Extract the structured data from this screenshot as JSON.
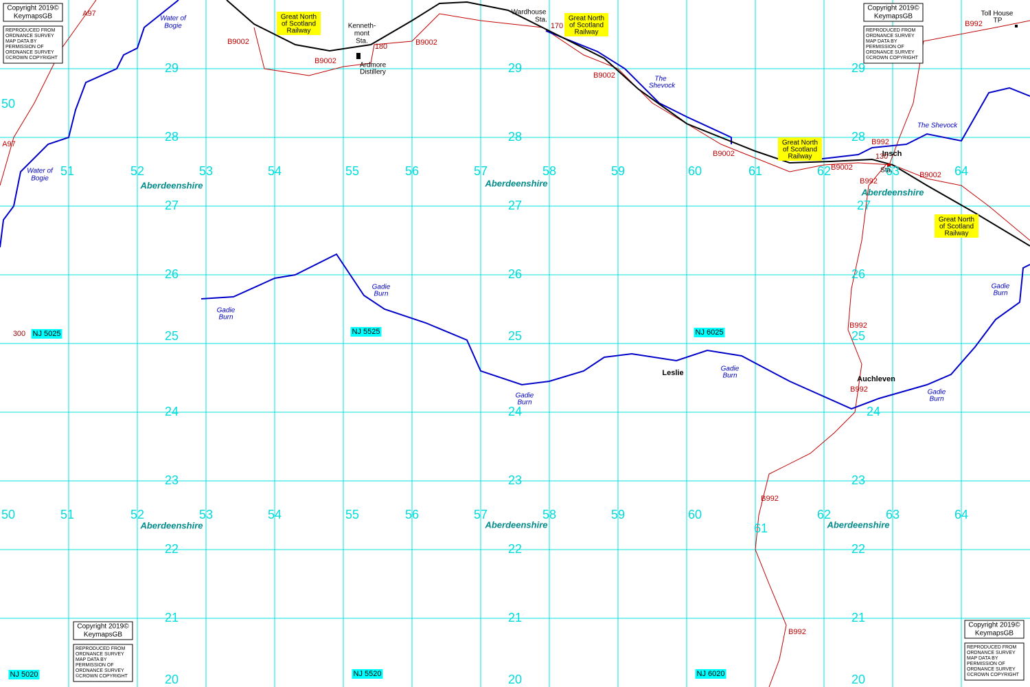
{
  "grid": {
    "northings": [
      29,
      28,
      27,
      26,
      25,
      24,
      23,
      22,
      21,
      20
    ],
    "eastings": [
      50,
      51,
      52,
      53,
      54,
      55,
      56,
      57,
      58,
      59,
      60,
      61,
      62,
      63,
      64
    ]
  },
  "region": "Aberdeenshire",
  "railway": [
    "Great North",
    "of Scotland",
    "Railway"
  ],
  "places": [
    [
      "Kenneth-",
      "mont",
      "Sta."
    ],
    [
      "Ardmore",
      "Distillery"
    ],
    [
      "Wardhouse",
      "Sta."
    ],
    [
      "Insch"
    ],
    [
      "Sta."
    ],
    [
      "Toll House",
      "TP"
    ],
    [
      "Leslie"
    ],
    [
      "Auchleven"
    ]
  ],
  "roads": [
    "A97",
    "B9002",
    "B992"
  ],
  "rivers": {
    "water_of_bogie": [
      "Water of",
      "Bogie"
    ],
    "shevock": [
      "The",
      "Shevock"
    ],
    "shevock_east": "The Shevock",
    "gadie_burn": [
      "Gadie",
      "Burn"
    ]
  },
  "heights": [
    300,
    180,
    170,
    130
  ],
  "sheets": [
    "NJ 5025",
    "NJ 5525",
    "NJ 6025",
    "NJ 5020",
    "NJ 5520",
    "NJ 6020"
  ],
  "copyright": {
    "title": "Copyright 2019©",
    "name": "KeymapsGB",
    "notice": [
      "REPRODUCED FROM",
      "ORDNANCE SURVEY",
      "MAP DATA BY",
      "PERMISSION OF",
      "ORDNANCE SURVEY",
      "©CROWN COPYRIGHT"
    ]
  }
}
